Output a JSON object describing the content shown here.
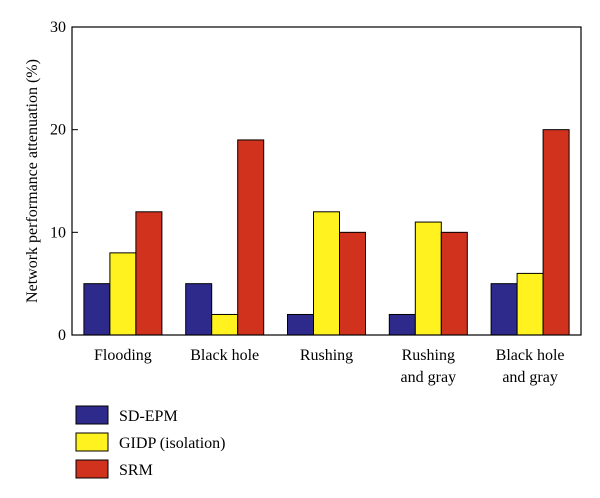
{
  "chart_data": {
    "type": "bar",
    "title": "",
    "xlabel": "",
    "ylabel": "Network performance attenuation (%)",
    "ylim": [
      0,
      30
    ],
    "yticks": [
      0,
      10,
      20,
      30
    ],
    "grid": false,
    "legend_position": "bottom-left",
    "categories": [
      [
        "Flooding"
      ],
      [
        "Black hole"
      ],
      [
        "Rushing"
      ],
      [
        "Rushing",
        "and gray"
      ],
      [
        "Black hole",
        "and gray"
      ]
    ],
    "series": [
      {
        "name": "SD-EPM",
        "color": "#2e2a8c",
        "values": [
          5,
          5,
          2,
          2,
          5
        ]
      },
      {
        "name": "GIDP (isolation)",
        "color": "#fff21e",
        "values": [
          8,
          2,
          12,
          11,
          6
        ]
      },
      {
        "name": "SRM",
        "color": "#d0321d",
        "values": [
          12,
          19,
          10,
          10,
          20
        ]
      }
    ]
  }
}
